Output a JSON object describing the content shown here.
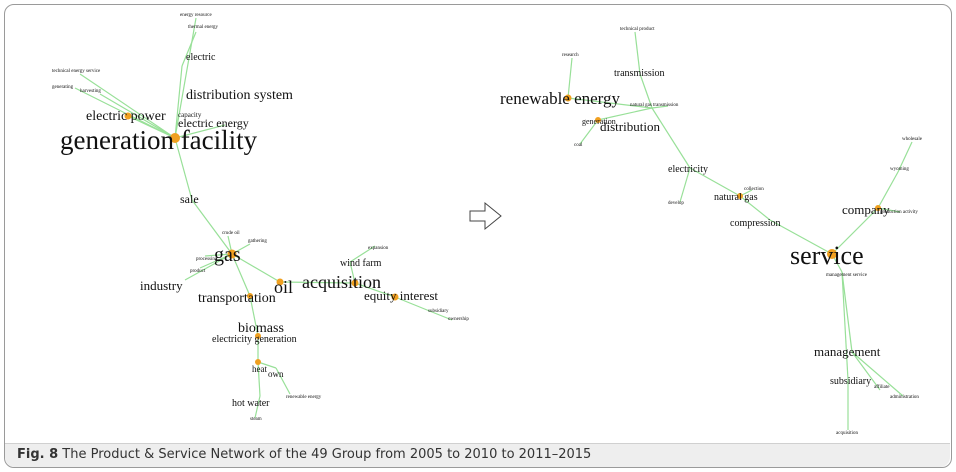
{
  "caption": {
    "label": "Fig. 8",
    "text": "The Product & Service Network of the 49 Group from 2005 to 2010 to 2011–2015"
  },
  "arrow": {
    "icon": "right-arrow-icon"
  },
  "left_network": {
    "terms": [
      "electric",
      "distribution system",
      "electric power",
      "electric energy",
      "generation facility",
      "sale",
      "gas",
      "industry",
      "transportation",
      "oil",
      "acquisition",
      "wind farm",
      "equity interest",
      "biomass",
      "electricity generation",
      "heat",
      "own",
      "hot water",
      "energy resource",
      "thermal energy",
      "technical energy service",
      "generating",
      "harvesting",
      "capacity",
      "crude oil",
      "gathering",
      "processing",
      "product",
      "expansion",
      "subsidiary",
      "ownership",
      "renewable energy",
      "steam"
    ]
  },
  "right_network": {
    "terms": [
      "technical product",
      "transmission",
      "renewable energy",
      "research",
      "generation",
      "natural gas transmission",
      "distribution",
      "coal",
      "electricity",
      "develop",
      "natural gas",
      "collection",
      "compression",
      "company",
      "wholesale",
      "wyoming",
      "production activity",
      "service",
      "management service",
      "management",
      "affiliate",
      "administration",
      "subsidiary",
      "acquisition"
    ]
  }
}
